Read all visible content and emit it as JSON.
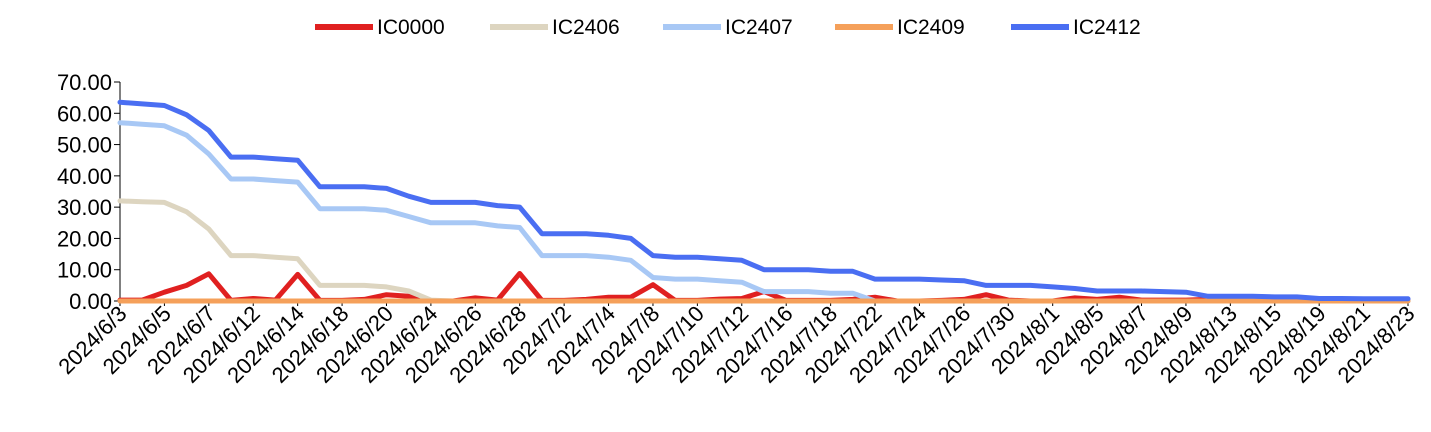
{
  "chart_data": {
    "type": "line",
    "title": "",
    "xlabel": "",
    "ylabel": "",
    "ylim": [
      0,
      70
    ],
    "y_ticks": [
      "0.00",
      "10.00",
      "20.00",
      "30.00",
      "40.00",
      "50.00",
      "60.00",
      "70.00"
    ],
    "grid": false,
    "legend_position": "top-center",
    "x_tick_labels": [
      "2024/6/3",
      "2024/6/5",
      "2024/6/7",
      "2024/6/12",
      "2024/6/14",
      "2024/6/18",
      "2024/6/20",
      "2024/6/24",
      "2024/6/26",
      "2024/6/28",
      "2024/7/2",
      "2024/7/4",
      "2024/7/8",
      "2024/7/10",
      "2024/7/12",
      "2024/7/16",
      "2024/7/18",
      "2024/7/22",
      "2024/7/24",
      "2024/7/26",
      "2024/7/30",
      "2024/8/1",
      "2024/8/5",
      "2024/8/7",
      "2024/8/9",
      "2024/8/13",
      "2024/8/15",
      "2024/8/19",
      "2024/8/21",
      "2024/8/23"
    ],
    "x": [
      "2024/6/3",
      "2024/6/4",
      "2024/6/5",
      "2024/6/6",
      "2024/6/7",
      "2024/6/11",
      "2024/6/12",
      "2024/6/13",
      "2024/6/14",
      "2024/6/17",
      "2024/6/18",
      "2024/6/19",
      "2024/6/20",
      "2024/6/21",
      "2024/6/24",
      "2024/6/25",
      "2024/6/26",
      "2024/6/27",
      "2024/6/28",
      "2024/7/1",
      "2024/7/2",
      "2024/7/3",
      "2024/7/4",
      "2024/7/5",
      "2024/7/8",
      "2024/7/9",
      "2024/7/10",
      "2024/7/11",
      "2024/7/12",
      "2024/7/15",
      "2024/7/16",
      "2024/7/17",
      "2024/7/18",
      "2024/7/19",
      "2024/7/22",
      "2024/7/23",
      "2024/7/24",
      "2024/7/25",
      "2024/7/26",
      "2024/7/29",
      "2024/7/30",
      "2024/7/31",
      "2024/8/1",
      "2024/8/2",
      "2024/8/5",
      "2024/8/6",
      "2024/8/7",
      "2024/8/8",
      "2024/8/9",
      "2024/8/12",
      "2024/8/13",
      "2024/8/14",
      "2024/8/15",
      "2024/8/16",
      "2024/8/19",
      "2024/8/20",
      "2024/8/21",
      "2024/8/22",
      "2024/8/23"
    ],
    "series": [
      {
        "name": "IC0000",
        "color": "#e02020",
        "values": [
          0.3,
          0.3,
          2.8,
          5,
          8.7,
          0.2,
          0.8,
          0.3,
          8.5,
          0.2,
          0.2,
          0.5,
          2,
          1.5,
          0,
          0,
          1,
          0.3,
          8.8,
          0.2,
          0.2,
          0.5,
          1.2,
          1.2,
          5.2,
          0.2,
          0.2,
          0.6,
          0.8,
          3,
          0.2,
          0.2,
          0.2,
          0.5,
          1.2,
          0,
          0,
          0.2,
          0.5,
          2,
          0.3,
          0,
          0,
          1,
          0.5,
          1.2,
          0.3,
          0.3,
          0.3,
          0.5,
          1.2,
          0.2,
          0.3,
          0.3,
          0.3,
          0.2,
          0.2,
          0.2,
          0.2
        ]
      },
      {
        "name": "IC2406",
        "color": "#ddd5c0",
        "values": [
          32,
          31.7,
          31.5,
          28.5,
          23,
          14.5,
          14.5,
          14,
          13.5,
          5,
          5,
          5,
          4.5,
          3.2,
          0.3,
          0,
          0,
          0,
          0,
          0,
          0,
          0,
          0,
          0,
          0,
          0,
          0,
          0,
          0,
          0,
          0,
          0,
          0,
          0,
          0,
          0,
          0,
          0,
          0,
          0,
          0,
          0,
          0,
          0,
          0,
          0,
          0,
          0,
          0,
          0,
          0,
          0,
          0,
          0,
          0,
          0,
          0,
          0,
          0
        ]
      },
      {
        "name": "IC2407",
        "color": "#a8c8f5",
        "values": [
          57,
          56.5,
          56,
          53,
          47,
          39,
          39,
          38.5,
          38,
          29.5,
          29.5,
          29.5,
          29,
          27,
          25,
          25,
          25,
          24,
          23.5,
          14.5,
          14.5,
          14.5,
          14,
          13,
          7.5,
          7,
          7,
          6.5,
          6,
          3,
          3,
          3,
          2.5,
          2.5,
          0,
          0,
          0,
          0,
          0,
          0,
          0,
          0,
          0,
          0,
          0,
          0,
          0,
          0,
          0,
          0,
          0,
          0,
          0,
          0,
          0,
          0,
          0,
          0,
          0
        ]
      },
      {
        "name": "IC2409",
        "color": "#f5a05a",
        "values": [
          0,
          0,
          0,
          0,
          0,
          0,
          0,
          0,
          0,
          0,
          0,
          0,
          0,
          0,
          0,
          0,
          0,
          0,
          0,
          0,
          0,
          0,
          0,
          0,
          0,
          0,
          0,
          0,
          0,
          0,
          0,
          0,
          0,
          0,
          0,
          0,
          0,
          0,
          0,
          0,
          0,
          0,
          0,
          0,
          0,
          0,
          0,
          0,
          0,
          0,
          0,
          0,
          0,
          0,
          0,
          0,
          0,
          0,
          0
        ]
      },
      {
        "name": "IC2412",
        "color": "#4a6ef2",
        "values": [
          63.5,
          63,
          62.5,
          59.5,
          54.5,
          46,
          46,
          45.5,
          45,
          36.5,
          36.5,
          36.5,
          36,
          33.5,
          31.5,
          31.5,
          31.5,
          30.5,
          30,
          21.5,
          21.5,
          21.5,
          21,
          20,
          14.5,
          14,
          14,
          13.5,
          13,
          10,
          10,
          10,
          9.5,
          9.5,
          7,
          7,
          7,
          6.7,
          6.5,
          5,
          5,
          5,
          4.5,
          4,
          3.2,
          3.2,
          3.2,
          3,
          2.8,
          1.5,
          1.5,
          1.5,
          1.3,
          1.3,
          0.8,
          0.8,
          0.7,
          0.7,
          0.7
        ]
      }
    ]
  }
}
